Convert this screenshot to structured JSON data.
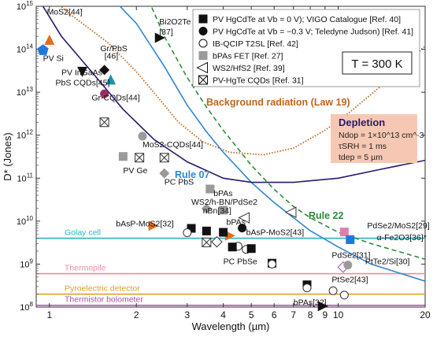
{
  "chart_data": {
    "type": "scatter",
    "xlabel": "Wavelength (µm)",
    "ylabel": "D* (Jones)",
    "xscale": "log",
    "yscale": "log",
    "xlim": [
      0.9,
      20
    ],
    "ylim": [
      100000000.0,
      1000000000000000.0
    ],
    "xticks": [
      1,
      2,
      3,
      4,
      5,
      6,
      7,
      8,
      9,
      10,
      20
    ],
    "yticks_exp": [
      8,
      9,
      10,
      11,
      12,
      13,
      14,
      15
    ],
    "grid": false,
    "temperature_label": "T = 300 K",
    "legend": [
      {
        "marker": "square-filled",
        "text": "PV HgCdTe at Vb = 0 V); VIGO Catalogue [Ref. 40]"
      },
      {
        "marker": "circle-filled",
        "text": "PV HgCdTe at Vb = −0.3 V; Teledyne Judson) [Ref. 41]"
      },
      {
        "marker": "circle-open",
        "text": "IB-QCIP T2SL [Ref. 42]"
      },
      {
        "marker": "square-gray",
        "text": "bPAs FET [Ref. 27]"
      },
      {
        "marker": "triangle-left-open",
        "text": "WS2/HfS2 [Ref. 39]"
      },
      {
        "marker": "square-x",
        "text": "PV-HgTe CQDs [Ref. 31]"
      }
    ],
    "depletion": {
      "title": "Depletion",
      "lines": [
        "Ndop = 1×10^13 cm^-3",
        "τSRH = 1 ms",
        "tdep = 5 µm"
      ]
    },
    "curves": [
      {
        "name": "Background radiation (Law 19)",
        "color": "#c0651b",
        "style": "dotted"
      },
      {
        "name": "Rule 07",
        "color": "#2e86d1",
        "style": "solid"
      },
      {
        "name": "Rule 22",
        "color": "#2e8b3a",
        "style": "dashed"
      },
      {
        "name": "Depletion",
        "color": "#2a1a6e",
        "style": "solid"
      }
    ],
    "reference_lines": [
      {
        "name": "Golay cell",
        "value": 4000000000.0,
        "color": "#2cb5c6"
      },
      {
        "name": "Thermopile",
        "value": 600000000.0,
        "color": "#f08aa0"
      },
      {
        "name": "Pyroelectric detector",
        "value": 200000000.0,
        "color": "#e0a020"
      },
      {
        "name": "Thermistor bolometer",
        "value": 110000000.0,
        "color": "#a64fb0"
      }
    ],
    "labels": [
      {
        "text": "MoS2[44]",
        "x": 0.98,
        "y": 640000000000000.0
      },
      {
        "text": "PV Si",
        "x": 0.95,
        "y": 53000000000000.0
      },
      {
        "text": "PV InGaAs",
        "x": 1.1,
        "y": 25000000000000.0
      },
      {
        "text": "PbS CQDs[45]",
        "x": 1.05,
        "y": 14500000000000.0
      },
      {
        "text": "Gr/PbS",
        "x": 1.5,
        "y": 90000000000000.0
      },
      {
        "text": "[46]",
        "x": 1.55,
        "y": 60000000000000.0
      },
      {
        "text": "Gr-CQDs[44]",
        "x": 1.4,
        "y": 6500000000000.0
      },
      {
        "text": "Bi2O2Te",
        "x": 2.4,
        "y": 380000000000000.0
      },
      {
        "text": "[37]",
        "x": 2.4,
        "y": 220000000000000.0
      },
      {
        "text": "MoS2-CQDs[44]",
        "x": 2.1,
        "y": 530000000000.0
      },
      {
        "text": "PV Ge",
        "x": 1.8,
        "y": 130000000000.0
      },
      {
        "text": "PC PbS",
        "x": 2.5,
        "y": 70000000000.0
      },
      {
        "text": "WS2/h-BN/PdSe2",
        "x": 3.1,
        "y": 24000000000.0
      },
      {
        "text": "nBn[34]",
        "x": 3.4,
        "y": 15000000000.0
      },
      {
        "text": "bPAs",
        "x": 3.7,
        "y": 38000000000.0
      },
      {
        "text": "bPAs",
        "x": 4.1,
        "y": 8300000000.0
      },
      {
        "text": "bAsP-MoS2[32]",
        "x": 1.7,
        "y": 7500000000.0
      },
      {
        "text": "bAsP-MoS2[43]",
        "x": 4.8,
        "y": 4800000000.0
      },
      {
        "text": "PC PbSe",
        "x": 4.0,
        "y": 1000000000.0
      },
      {
        "text": "PdSe2/MoS2[29]",
        "x": 12.6,
        "y": 6800000000.0
      },
      {
        "text": "α-Fe2O3[36]*",
        "x": 13.6,
        "y": 3600000000.0
      },
      {
        "text": "PdSe2[31]",
        "x": 9.5,
        "y": 1400000000.0
      },
      {
        "text": "PtTe2/Si[30]",
        "x": 12.4,
        "y": 1000000000.0
      },
      {
        "text": "PtSe2[43]",
        "x": 9.5,
        "y": 380000000.0
      },
      {
        "text": "bPAs[32]",
        "x": 7.0,
        "y": 110000000.0
      }
    ],
    "points": [
      {
        "marker": "triangle-up-filled",
        "color": "#e06c1f",
        "x": 1.0,
        "y": 160000000000000.0
      },
      {
        "marker": "pentagon-filled",
        "color": "#1f77e0",
        "x": 0.95,
        "y": 95000000000000.0
      },
      {
        "marker": "triangle-down-filled",
        "color": "#111111",
        "x": 1.3,
        "y": 31000000000000.0
      },
      {
        "marker": "diamond-filled",
        "color": "#111111",
        "x": 1.55,
        "y": 33000000000000.0
      },
      {
        "marker": "triangle-up-filled",
        "color": "#1f8fb0",
        "x": 1.63,
        "y": 19000000000000.0
      },
      {
        "marker": "circle-filled",
        "color": "#9c2c5d",
        "x": 1.55,
        "y": 9200000000000.0
      },
      {
        "marker": "triangle-right-filled",
        "color": "#111111",
        "x": 2.4,
        "y": 185000000000000.0
      },
      {
        "marker": "square-x",
        "color": "#333333",
        "x": 1.55,
        "y": 2000000000000.0
      },
      {
        "marker": "circle-filled",
        "color": "#9a9a9a",
        "x": 2.1,
        "y": 950000000000.0
      },
      {
        "marker": "square-filled",
        "color": "#9a9a9a",
        "x": 1.8,
        "y": 320000000000.0
      },
      {
        "marker": "square-x",
        "color": "#333333",
        "x": 2.05,
        "y": 300000000000.0
      },
      {
        "marker": "square-x",
        "color": "#333333",
        "x": 2.5,
        "y": 300000000000.0
      },
      {
        "marker": "diamond-filled",
        "color": "#9a9a9a",
        "x": 2.5,
        "y": 130000000000.0
      },
      {
        "marker": "square-filled",
        "color": "#9a9a9a",
        "x": 3.6,
        "y": 56000000000.0
      },
      {
        "marker": "diamond-filled",
        "color": "#9a9a9a",
        "x": 3.5,
        "y": 19500000000.0
      },
      {
        "marker": "square-filled",
        "color": "#9a9a9a",
        "x": 4.0,
        "y": 18000000000.0
      },
      {
        "marker": "triangle-left-open",
        "color": "#333333",
        "x": 4.75,
        "y": 12000000000.0
      },
      {
        "marker": "triangle-left-open",
        "color": "#333333",
        "x": 6.9,
        "y": 16000000000.0
      },
      {
        "marker": "triangle-right-filled",
        "color": "#e06c1f",
        "x": 2.28,
        "y": 7800000000.0
      },
      {
        "marker": "triangle-right-filled",
        "color": "#e06c1f",
        "x": 4.2,
        "y": 4600000000.0
      },
      {
        "marker": "square-filled",
        "color": "#111111",
        "x": 3.1,
        "y": 6800000000.0
      },
      {
        "marker": "square-filled",
        "color": "#111111",
        "x": 3.5,
        "y": 5900000000.0
      },
      {
        "marker": "square-filled",
        "color": "#111111",
        "x": 4.0,
        "y": 5500000000.0
      },
      {
        "marker": "circle-filled",
        "color": "#111111",
        "x": 4.65,
        "y": 6900000000.0
      },
      {
        "marker": "circle-open",
        "color": "#333333",
        "x": 3.0,
        "y": 5400000000.0
      },
      {
        "marker": "circle-open",
        "color": "#333333",
        "x": 4.5,
        "y": 2600000000.0
      },
      {
        "marker": "circle-open",
        "color": "#333333",
        "x": 4.8,
        "y": 2200000000.0
      },
      {
        "marker": "diamond-open",
        "color": "#333333",
        "x": 3.8,
        "y": 3300000000.0
      },
      {
        "marker": "square-x",
        "color": "#333333",
        "x": 3.5,
        "y": 3200000000.0
      },
      {
        "marker": "square-filled",
        "color": "#111111",
        "x": 4.3,
        "y": 2500000000.0
      },
      {
        "marker": "square-filled",
        "color": "#111111",
        "x": 5.0,
        "y": 2300000000.0
      },
      {
        "marker": "square-filled",
        "color": "#111111",
        "x": 5.9,
        "y": 1050000000.0
      },
      {
        "marker": "circle-open",
        "color": "#333333",
        "x": 5.9,
        "y": 1000000000.0
      },
      {
        "marker": "square-filled",
        "color": "#111111",
        "x": 7.8,
        "y": 330000000.0
      },
      {
        "marker": "circle-open",
        "color": "#333333",
        "x": 7.8,
        "y": 280000000.0
      },
      {
        "marker": "circle-open",
        "color": "#333333",
        "x": 9.6,
        "y": 240000000.0
      },
      {
        "marker": "circle-open",
        "color": "#333333",
        "x": 10.5,
        "y": 190000000.0
      },
      {
        "marker": "square-filled",
        "color": "#e07db0",
        "x": 10.5,
        "y": 5600000000.0
      },
      {
        "marker": "square-filled",
        "color": "#1f77e0",
        "x": 11.0,
        "y": 3700000000.0
      },
      {
        "marker": "diamond-open",
        "color": "#a64fb0",
        "x": 10.4,
        "y": 850000000.0
      },
      {
        "marker": "circle-filled",
        "color": "#9a9a9a",
        "x": 10.8,
        "y": 950000000.0
      },
      {
        "marker": "triangle-right-filled",
        "color": "#111111",
        "x": 8.8,
        "y": 105000000.0
      }
    ]
  }
}
